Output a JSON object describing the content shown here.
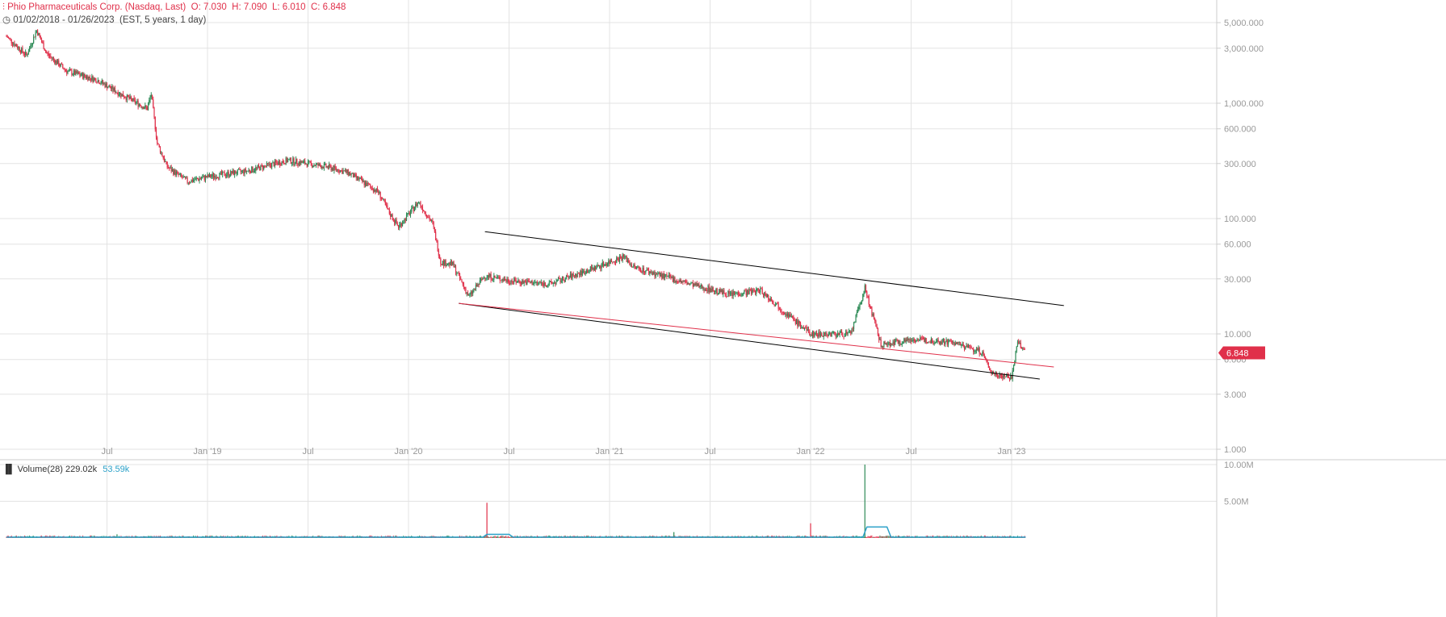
{
  "header": {
    "title": "Phio Pharmaceuticals Corp. (Nasdaq, Last)",
    "open": "O: 7.030",
    "high": "H: 7.090",
    "low": "L: 6.010",
    "close": "C: 6.848",
    "range": "01/02/2018 - 01/26/2023",
    "range_info": "(EST, 5 years, 1 day)"
  },
  "volume": {
    "label": "Volume(28)",
    "value": "229.02k",
    "ma": "53.59k"
  },
  "last_price": "6.848",
  "colors": {
    "up": "#2e8b57",
    "down": "#e0304a",
    "accent": "#e0304a",
    "volume_ma": "#2aa0c8"
  },
  "chart_data": {
    "type": "candlestick",
    "scale": "log",
    "yticks": [
      "5,000.000",
      "3,000.000",
      "1,000.000",
      "600.000",
      "300.000",
      "100.000",
      "60.000",
      "30.000",
      "10.000",
      "6.000",
      "3.000",
      "1.000"
    ],
    "ytick_values": [
      5000,
      3000,
      1000,
      600,
      300,
      100,
      60,
      30,
      10,
      6,
      3,
      1
    ],
    "xticks": [
      "Jul",
      "Jan '19",
      "Jul",
      "Jan '20",
      "Jul",
      "Jan '21",
      "Jul",
      "Jan '22",
      "Jul",
      "Jan '23"
    ],
    "xtick_dates": [
      2018.5,
      2019,
      2019.5,
      2020,
      2020.5,
      2021,
      2021.5,
      2022,
      2022.5,
      2023
    ],
    "price_path": [
      [
        2018.0,
        3800
      ],
      [
        2018.1,
        2600
      ],
      [
        2018.15,
        4300
      ],
      [
        2018.2,
        2700
      ],
      [
        2018.3,
        1900
      ],
      [
        2018.45,
        1600
      ],
      [
        2018.55,
        1250
      ],
      [
        2018.7,
        900
      ],
      [
        2018.72,
        1200
      ],
      [
        2018.75,
        450
      ],
      [
        2018.8,
        280
      ],
      [
        2018.9,
        210
      ],
      [
        2019.0,
        230
      ],
      [
        2019.2,
        260
      ],
      [
        2019.4,
        320
      ],
      [
        2019.6,
        280
      ],
      [
        2019.7,
        250
      ],
      [
        2019.85,
        170
      ],
      [
        2019.9,
        115
      ],
      [
        2019.95,
        85
      ],
      [
        2020.02,
        120
      ],
      [
        2020.05,
        140
      ],
      [
        2020.12,
        90
      ],
      [
        2020.16,
        42
      ],
      [
        2020.22,
        40
      ],
      [
        2020.3,
        21
      ],
      [
        2020.38,
        32
      ],
      [
        2020.5,
        29
      ],
      [
        2020.7,
        27
      ],
      [
        2020.9,
        36
      ],
      [
        2021.07,
        47
      ],
      [
        2021.12,
        38
      ],
      [
        2021.4,
        27
      ],
      [
        2021.6,
        22
      ],
      [
        2021.75,
        24
      ],
      [
        2021.9,
        14
      ],
      [
        2022.0,
        10
      ],
      [
        2022.2,
        10
      ],
      [
        2022.27,
        25
      ],
      [
        2022.35,
        8
      ],
      [
        2022.5,
        9
      ],
      [
        2022.7,
        8.5
      ],
      [
        2022.85,
        7
      ],
      [
        2022.9,
        4.6
      ],
      [
        2023.0,
        4.2
      ],
      [
        2023.03,
        8.5
      ],
      [
        2023.07,
        6.848
      ]
    ],
    "trendlines": [
      {
        "color": "#000000",
        "from": [
          2020.38,
          77
        ],
        "to": [
          2023.26,
          17.6
        ]
      },
      {
        "color": "#000000",
        "from": [
          2020.25,
          18.4
        ],
        "to": [
          2023.14,
          4.06
        ]
      },
      {
        "color": "#e0304a",
        "from": [
          2020.25,
          18.4
        ],
        "to": [
          2023.21,
          5.17
        ]
      }
    ],
    "volume_yticks": [
      "10.00M",
      "5.00M"
    ],
    "volume_ytick_values": [
      10000000,
      5000000
    ],
    "volume_spikes": [
      [
        2020.39,
        4800000,
        "down"
      ],
      [
        2022.0,
        2000000,
        "down"
      ],
      [
        2022.27,
        10000000,
        "up"
      ],
      [
        2021.32,
        800000,
        "up"
      ],
      [
        2018.55,
        500000,
        "up"
      ],
      [
        2020.2,
        300000,
        "up"
      ]
    ],
    "volume_ma": [
      [
        2018.0,
        50000
      ],
      [
        2020.37,
        60000
      ],
      [
        2020.39,
        500000
      ],
      [
        2020.5,
        500000
      ],
      [
        2020.52,
        60000
      ],
      [
        2022.26,
        60000
      ],
      [
        2022.28,
        1500000
      ],
      [
        2022.38,
        1500000
      ],
      [
        2022.4,
        80000
      ],
      [
        2023.07,
        53590
      ]
    ]
  }
}
